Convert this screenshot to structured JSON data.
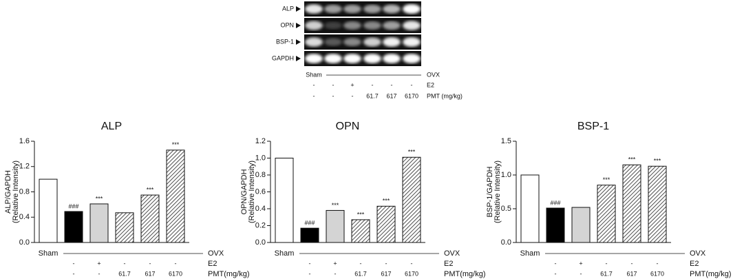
{
  "blot": {
    "rows": [
      "ALP",
      "OPN",
      "BSP-1",
      "GAPDH"
    ],
    "sham": "Sham",
    "ovx": "OVX",
    "treatment": [
      {
        "label": "E2",
        "cells": [
          "-",
          "-",
          "+",
          "-",
          "-",
          "-"
        ]
      },
      {
        "label": "PMT (mg/kg)",
        "cells": [
          "-",
          "-",
          "-",
          "61.7",
          "617",
          "6170"
        ]
      }
    ]
  },
  "chart_data": [
    {
      "type": "bar",
      "title": "ALP",
      "ylabel": [
        "ALP/GAPDH",
        "(Relative Intensity)"
      ],
      "values": [
        1.0,
        0.49,
        0.61,
        0.47,
        0.75,
        1.46
      ],
      "annotations": [
        null,
        "###",
        "***",
        null,
        "***",
        "***"
      ],
      "fills": [
        "#ffffff",
        "#000000",
        "#d4d4d4",
        "hatch",
        "hatch",
        "hatch"
      ],
      "ylim": [
        0,
        1.6
      ],
      "yticks": [
        {
          "value": 0,
          "label": "0.0"
        },
        0.4,
        0.8,
        1.2,
        1.6
      ],
      "sham": "Sham",
      "ovx": "OVX",
      "treatment": [
        {
          "label": "E2",
          "cells": [
            "-",
            "+",
            "-",
            "-",
            "-"
          ]
        },
        {
          "label": "PMT(mg/kg)",
          "cells": [
            "-",
            "-",
            "61.7",
            "617",
            "6170"
          ]
        }
      ]
    },
    {
      "type": "bar",
      "title": "OPN",
      "ylabel": [
        "OPN/GAPDH",
        "(Relative Intensity)"
      ],
      "values": [
        1.0,
        0.17,
        0.38,
        0.27,
        0.43,
        1.01
      ],
      "annotations": [
        null,
        "###",
        "***",
        "***",
        "***",
        "***"
      ],
      "fills": [
        "#ffffff",
        "#000000",
        "#d4d4d4",
        "hatch",
        "hatch",
        "hatch"
      ],
      "ylim": [
        0,
        1.2
      ],
      "yticks": [
        {
          "value": 0,
          "label": "0.0"
        },
        0.2,
        0.4,
        0.6,
        0.8,
        {
          "value": 1,
          "label": "1.0"
        },
        1.2
      ],
      "sham": "Sham",
      "ovx": "OVX",
      "treatment": [
        {
          "label": "E2",
          "cells": [
            "-",
            "+",
            "-",
            "-",
            "-"
          ]
        },
        {
          "label": "PMT(mg/kg)",
          "cells": [
            "-",
            "-",
            "61.7",
            "617",
            "6170"
          ]
        }
      ]
    },
    {
      "type": "bar",
      "title": "BSP-1",
      "ylabel": [
        "BSP-1/GAPDH",
        "(Relative Intensity)"
      ],
      "values": [
        1.0,
        0.51,
        0.52,
        0.85,
        1.15,
        1.13
      ],
      "annotations": [
        null,
        "###",
        null,
        "***",
        "***",
        "***"
      ],
      "fills": [
        "#ffffff",
        "#000000",
        "#d4d4d4",
        "hatch",
        "hatch",
        "hatch"
      ],
      "ylim": [
        0,
        1.5
      ],
      "yticks": [
        {
          "value": 0,
          "label": "0.0"
        },
        0.5,
        {
          "value": 1,
          "label": "1.0"
        },
        1.5
      ],
      "sham": "Sham",
      "ovx": "OVX",
      "treatment": [
        {
          "label": "E2",
          "cells": [
            "-",
            "+",
            "-",
            "-",
            "-"
          ]
        },
        {
          "label": "PMT(mg/kg)",
          "cells": [
            "-",
            "-",
            "61.7",
            "617",
            "6170"
          ]
        }
      ]
    }
  ]
}
